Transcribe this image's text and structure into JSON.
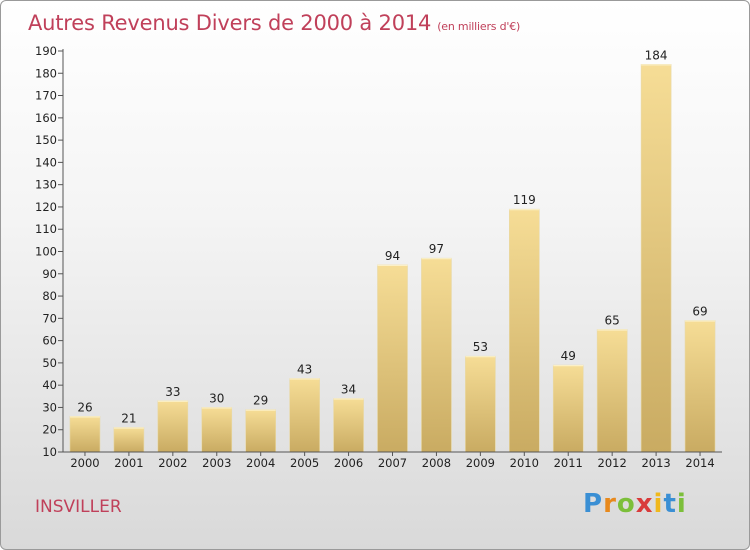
{
  "header": {
    "title": "Autres Revenus Divers de 2000 à 2014",
    "unit": "(en milliers d'€)"
  },
  "location": "INSVILLER",
  "logo": {
    "letters": [
      "P",
      "r",
      "o",
      "x",
      "i",
      "t",
      "i"
    ],
    "colors": [
      "#3a8fd4",
      "#e8891c",
      "#7cbf3a",
      "#d93b3b",
      "#f0b81c",
      "#3a8fd4",
      "#7cbf3a"
    ]
  },
  "chart_data": {
    "type": "bar",
    "categories": [
      "2000",
      "2001",
      "2002",
      "2003",
      "2004",
      "2005",
      "2006",
      "2007",
      "2008",
      "2009",
      "2010",
      "2011",
      "2012",
      "2013",
      "2014"
    ],
    "values": [
      26,
      21,
      33,
      30,
      29,
      43,
      34,
      94,
      97,
      53,
      119,
      49,
      65,
      184,
      69
    ],
    "ylim": [
      10,
      190
    ],
    "ytick_step": 10,
    "grid": false,
    "colors": {
      "bar_top": "#f6dd96",
      "bar_bottom": "#c9ab62",
      "axis": "#555555"
    }
  }
}
